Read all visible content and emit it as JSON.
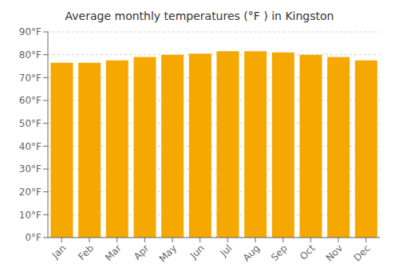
{
  "chart_data": {
    "type": "bar",
    "title": "Average monthly temperatures (°F ) in Kingston",
    "categories": [
      "Jan",
      "Feb",
      "Mar",
      "Apr",
      "May",
      "Jun",
      "Jul",
      "Aug",
      "Sep",
      "Oct",
      "Nov",
      "Dec"
    ],
    "values": [
      76.5,
      76.5,
      77.5,
      79.0,
      80.0,
      80.5,
      81.5,
      81.5,
      81.0,
      80.0,
      79.0,
      77.5
    ],
    "color": "#F5A800",
    "ylim": [
      0,
      90
    ],
    "yticks": [
      {
        "value": 0,
        "label": "0°F"
      },
      {
        "value": 10,
        "label": "10°F"
      },
      {
        "value": 20,
        "label": "20°F"
      },
      {
        "value": 30,
        "label": "30°F"
      },
      {
        "value": 40,
        "label": "40°F"
      },
      {
        "value": 50,
        "label": "50°F"
      },
      {
        "value": 60,
        "label": "60°F"
      },
      {
        "value": 70,
        "label": "70°F"
      },
      {
        "value": 80,
        "label": "80°F"
      },
      {
        "value": 90,
        "label": "90°F"
      }
    ],
    "grid": true
  }
}
